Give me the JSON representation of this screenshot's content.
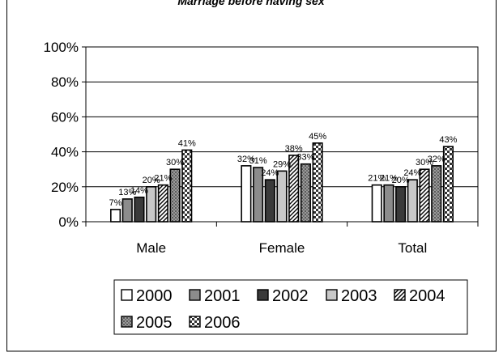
{
  "chart_data": {
    "type": "bar",
    "title": "Marriage before having sex",
    "categories": [
      "Male",
      "Female",
      "Total"
    ],
    "series": [
      {
        "name": "2000",
        "values": [
          7,
          32,
          21
        ],
        "labels": [
          "7%",
          "32%",
          "21%"
        ],
        "fill": "#ffffff",
        "pattern": "solid"
      },
      {
        "name": "2001",
        "values": [
          13,
          31,
          21
        ],
        "labels": [
          "13%",
          "31%",
          "21%"
        ],
        "fill": "#8c8c8c",
        "pattern": "solid"
      },
      {
        "name": "2002",
        "values": [
          14,
          24,
          20
        ],
        "labels": [
          "14%",
          "24%",
          "20%"
        ],
        "fill": "#3a3a3a",
        "pattern": "solid"
      },
      {
        "name": "2003",
        "values": [
          20,
          29,
          24
        ],
        "labels": [
          "20%",
          "29%",
          "24%"
        ],
        "fill": "#c8c8c8",
        "pattern": "solid"
      },
      {
        "name": "2004",
        "values": [
          21,
          38,
          30
        ],
        "labels": [
          "21%",
          "38%",
          "30%"
        ],
        "fill": "#ffffff",
        "pattern": "diagonal"
      },
      {
        "name": "2005",
        "values": [
          30,
          33,
          32
        ],
        "labels": [
          "30%",
          "33%",
          "32%"
        ],
        "fill": "#7a7a7a",
        "pattern": "dotted"
      },
      {
        "name": "2006",
        "values": [
          41,
          45,
          43
        ],
        "labels": [
          "41%",
          "45%",
          "43%"
        ],
        "fill": "#444444",
        "pattern": "checker"
      }
    ],
    "yticks": [
      "0%",
      "20%",
      "40%",
      "60%",
      "80%",
      "100%"
    ],
    "ylim": [
      0,
      100
    ],
    "grid": true,
    "legend_position": "bottom"
  }
}
